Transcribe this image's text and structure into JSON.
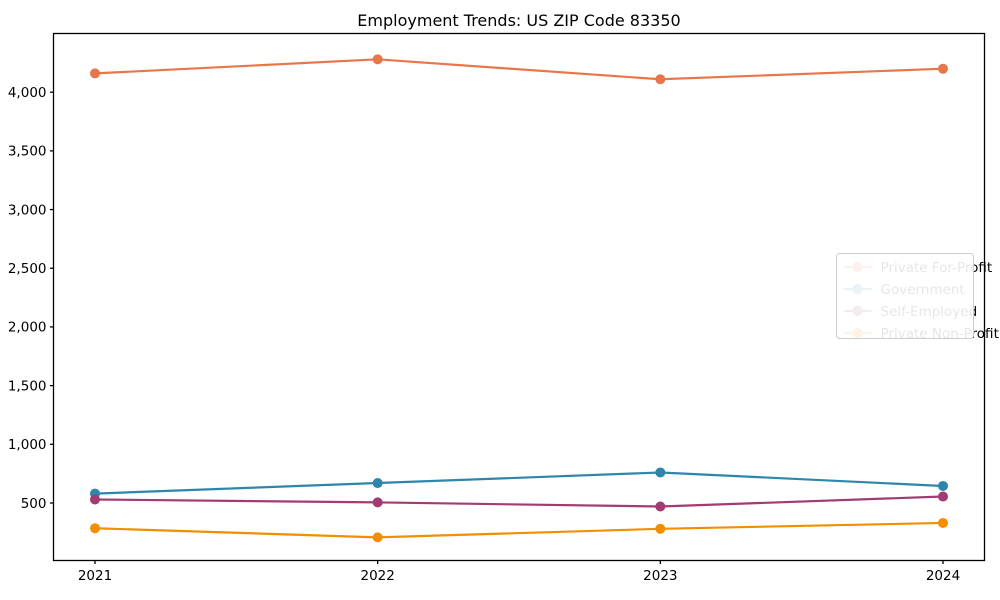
{
  "chart_data": {
    "type": "line",
    "title": "Employment Trends: US ZIP Code 83350",
    "categories": [
      "2021",
      "2022",
      "2023",
      "2024"
    ],
    "x": [
      2021,
      2022,
      2023,
      2024
    ],
    "series": [
      {
        "name": "Private For-Profit",
        "color": "#E8764B",
        "values": [
          4160,
          4280,
          4110,
          4200
        ]
      },
      {
        "name": "Government",
        "color": "#2E86AB",
        "values": [
          580,
          670,
          760,
          645
        ]
      },
      {
        "name": "Self-Employed",
        "color": "#A23B72",
        "values": [
          530,
          505,
          470,
          555
        ]
      },
      {
        "name": "Private Non-Profit",
        "color": "#F18F01",
        "values": [
          285,
          207,
          280,
          330
        ]
      }
    ],
    "xlabel": "",
    "ylabel": "",
    "ylim": [
      10,
      4500
    ],
    "yticks": [
      500,
      1000,
      1500,
      2000,
      2500,
      3000,
      3500,
      4000
    ],
    "ytick_labels": [
      "500",
      "1,000",
      "1,500",
      "2,000",
      "2,500",
      "3,000",
      "3,500",
      "4,000"
    ],
    "grid": false,
    "legend_position": "center right",
    "axis_color": "#000000",
    "legend_border_color": "#cccccc",
    "background": "#ffffff"
  }
}
